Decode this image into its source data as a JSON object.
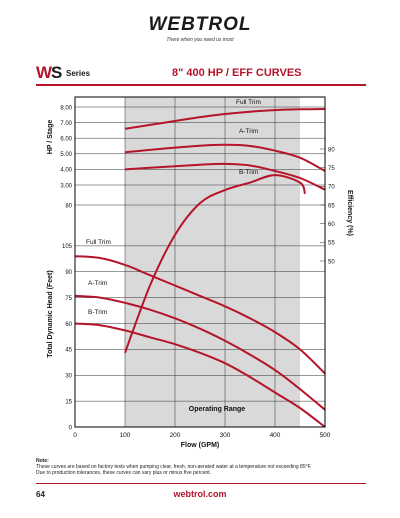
{
  "header": {
    "logo_text": "WEBTROL",
    "tagline": "There when you need us most",
    "series_mark_w": "W",
    "series_mark_s": "S",
    "series_word": "Series",
    "title": "8\" 400 HP / EFF CURVES"
  },
  "footer": {
    "note_label": "Note:",
    "note_lines": [
      "These curves are based on factory tests when pumping clear, fresh, non-aerated water at a temperature not exceeding 85°F.",
      "Due to production tolerances, these curves can vary plus or minus five percent."
    ],
    "page_number": "64",
    "website": "webtrol.com"
  },
  "colors": {
    "curve": "#b5142a",
    "operating_range": "#d9d9d9",
    "frame": "#000000"
  },
  "chart_data": {
    "type": "line",
    "x": {
      "label": "Flow (GPM)",
      "ticks": [
        "0",
        "100",
        "200",
        "300",
        "400",
        "500"
      ],
      "range": [
        0,
        500
      ]
    },
    "head_axis": {
      "label": "Total Dynamic Head (Feet)",
      "ticks": [
        "0",
        "15",
        "30",
        "45",
        "60",
        "75",
        "90",
        "105"
      ],
      "range": [
        0,
        120
      ]
    },
    "hp_axis": {
      "label": "HP / Stage",
      "ticks": [
        "3.00",
        "4.00",
        "5.00",
        "6.00",
        "7.00",
        "8.00"
      ],
      "tick_values": [
        3,
        4,
        5,
        6,
        7,
        8
      ],
      "range": [
        3.0,
        8.5
      ]
    },
    "efficiency_axis": {
      "label": "Efficiency (%)",
      "ticks": [
        "50",
        "55",
        "60",
        "65",
        "70",
        "75",
        "80"
      ],
      "range": [
        50,
        80
      ]
    },
    "head_tick_80": "80",
    "operating_range": {
      "label": "Operating Range",
      "from": 100,
      "to": 450
    },
    "head_series": [
      {
        "name": "Full Trim",
        "x": [
          0,
          50,
          100,
          150,
          200,
          250,
          300,
          350,
          400,
          450,
          500
        ],
        "values": [
          99,
          98,
          94,
          88,
          82,
          76,
          70,
          63,
          55,
          45,
          31
        ]
      },
      {
        "name": "A-Trim",
        "x": [
          0,
          50,
          100,
          150,
          200,
          250,
          300,
          350,
          400,
          450,
          500
        ],
        "values": [
          76,
          75,
          72,
          68,
          63,
          57,
          50,
          42,
          33,
          22,
          10
        ]
      },
      {
        "name": "B-Trim",
        "x": [
          0,
          50,
          100,
          150,
          200,
          250,
          300,
          350,
          400,
          450,
          500
        ],
        "values": [
          60,
          59,
          56,
          52,
          48,
          43,
          37,
          29,
          20,
          11,
          0
        ]
      }
    ],
    "hp_series": [
      {
        "name": "Full Trim",
        "x": [
          100,
          150,
          200,
          250,
          300,
          350,
          400,
          450,
          500
        ],
        "values": [
          6.6,
          6.85,
          7.1,
          7.35,
          7.55,
          7.7,
          7.8,
          7.85,
          7.87
        ]
      },
      {
        "name": "A-Trim",
        "x": [
          100,
          150,
          200,
          250,
          300,
          350,
          400,
          450,
          500
        ],
        "values": [
          5.1,
          5.25,
          5.4,
          5.52,
          5.58,
          5.5,
          5.2,
          4.75,
          3.9
        ]
      },
      {
        "name": "B-Trim",
        "x": [
          100,
          150,
          200,
          250,
          300,
          350,
          400,
          450,
          500
        ],
        "values": [
          4.0,
          4.1,
          4.2,
          4.3,
          4.35,
          4.25,
          3.9,
          3.45,
          2.7
        ]
      }
    ],
    "efficiency_series": {
      "x": [
        100,
        150,
        200,
        250,
        300,
        350,
        400,
        450,
        460
      ],
      "values": [
        0,
        28,
        57,
        65.5,
        69,
        71,
        73,
        71,
        68
      ]
    }
  }
}
